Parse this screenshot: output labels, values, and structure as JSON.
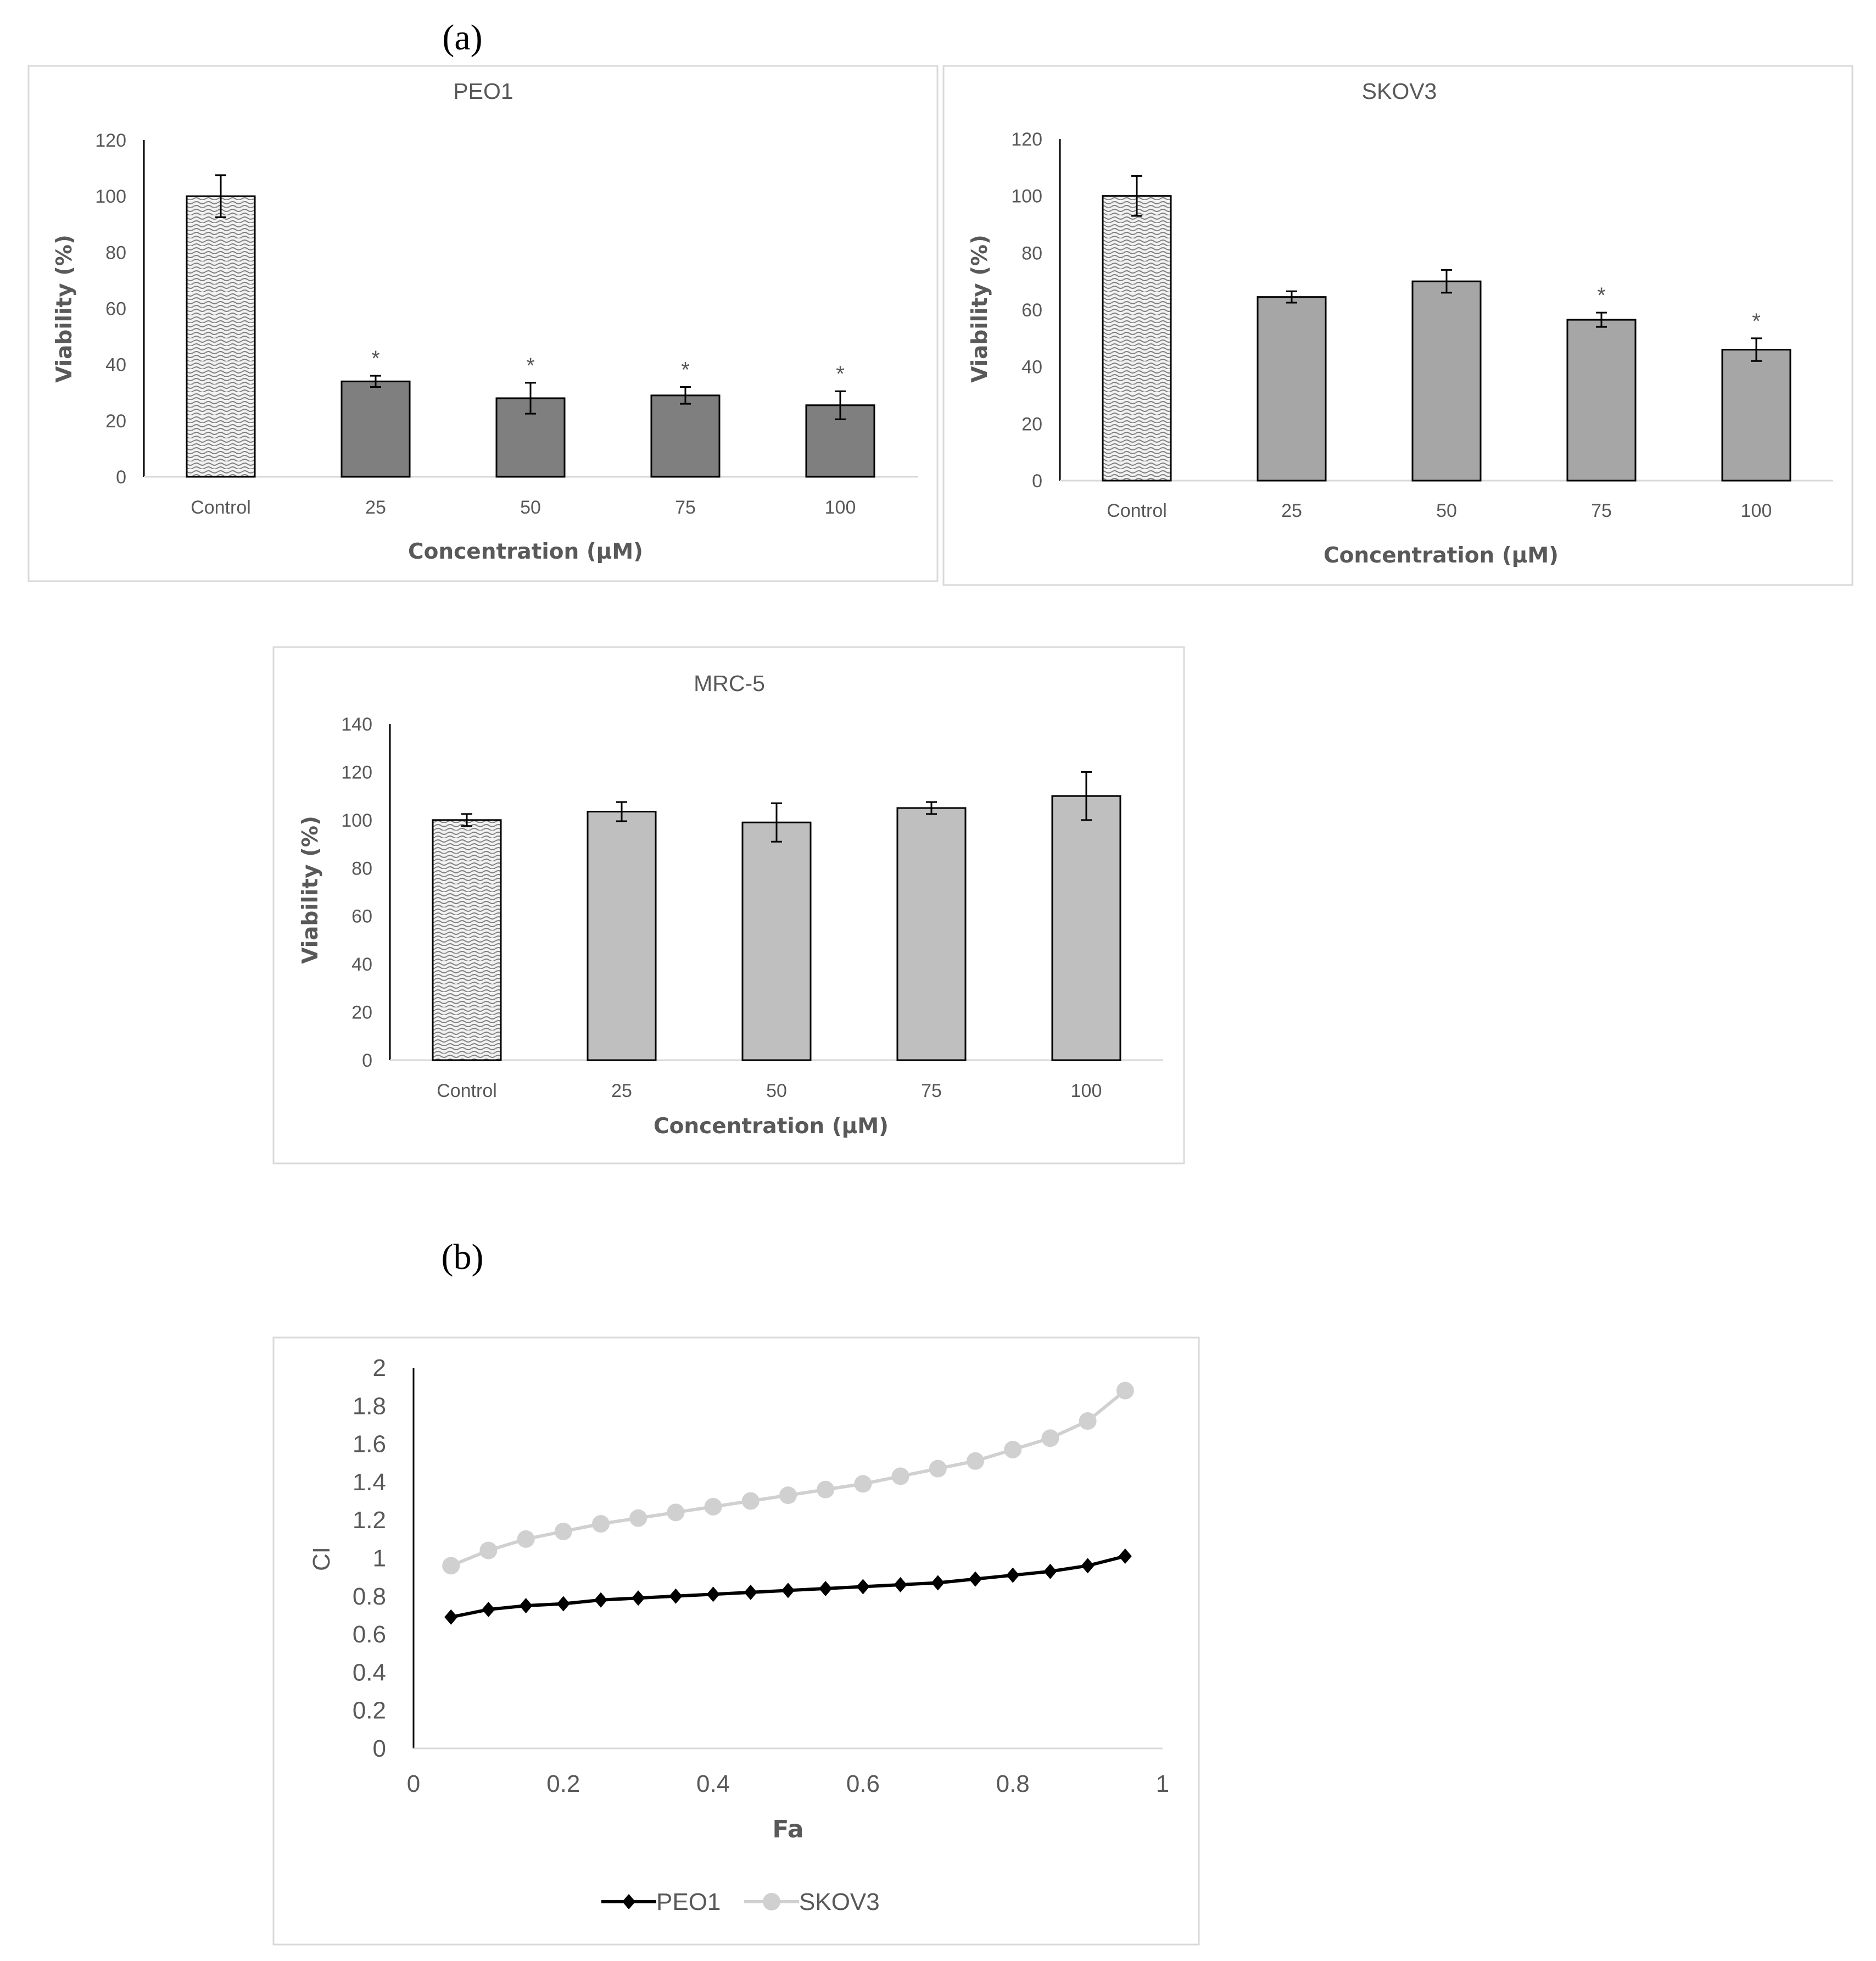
{
  "figure": {
    "panel_a_label": "(a)",
    "panel_b_label": "(b)",
    "panel_a_letter": "a",
    "panel_b_letter": "b"
  },
  "colors": {
    "frame": "#d9d9d9",
    "axis": "#000000",
    "text": "#595959",
    "control_fill": "#f2f2f2",
    "control_hatch": "#7f7f7f",
    "peo1_bar": "#7f7f7f",
    "skov3_bar": "#a6a6a6",
    "mrc5_bar": "#bfbfbf",
    "peo1_line": "#000000",
    "skov3_line": "#d0d0d0"
  },
  "chart_data": [
    {
      "id": "peo1",
      "type": "bar",
      "title": "PEO1",
      "xlabel": "Concentration (µM)",
      "ylabel": "Viability (%)",
      "categories": [
        "Control",
        "25",
        "50",
        "75",
        "100"
      ],
      "values": [
        100,
        34,
        28,
        29,
        25.5
      ],
      "errors": [
        7.5,
        2,
        5.5,
        3,
        5
      ],
      "significance": [
        "",
        "*",
        "*",
        "*",
        "*"
      ],
      "yticks": [
        0,
        20,
        40,
        60,
        80,
        100,
        120
      ],
      "ylim": [
        0,
        120
      ],
      "control_pattern": "dotted"
    },
    {
      "id": "skov3",
      "type": "bar",
      "title": "SKOV3",
      "xlabel": "Concentration (µM)",
      "ylabel": "Viability (%)",
      "categories": [
        "Control",
        "25",
        "50",
        "75",
        "100"
      ],
      "values": [
        100,
        64.5,
        70,
        56.5,
        46
      ],
      "errors": [
        7,
        2,
        4,
        2.5,
        4
      ],
      "significance": [
        "",
        "",
        "",
        "*",
        "*"
      ],
      "yticks": [
        0,
        20,
        40,
        60,
        80,
        100,
        120
      ],
      "ylim": [
        0,
        120
      ],
      "control_pattern": "dotted"
    },
    {
      "id": "mrc5",
      "type": "bar",
      "title": "MRC-5",
      "xlabel": "Concentration (µM)",
      "ylabel": "Viability (%)",
      "categories": [
        "Control",
        "25",
        "50",
        "75",
        "100"
      ],
      "values": [
        100,
        103.5,
        99,
        105,
        110
      ],
      "errors": [
        2.5,
        4,
        8,
        2.5,
        10
      ],
      "significance": [
        "",
        "",
        "",
        "",
        ""
      ],
      "yticks": [
        0,
        20,
        40,
        60,
        80,
        100,
        120,
        140
      ],
      "ylim": [
        0,
        140
      ],
      "control_pattern": "dotted"
    },
    {
      "id": "ci",
      "type": "line",
      "title": "",
      "xlabel": "Fa",
      "ylabel": "CI",
      "xlim": [
        0,
        1
      ],
      "ylim": [
        0,
        2
      ],
      "xticks": [
        "0",
        "0.2",
        "0.4",
        "0.6",
        "0.8",
        "1"
      ],
      "yticks": [
        "0",
        "0.2",
        "0.4",
        "0.6",
        "0.8",
        "1",
        "1.2",
        "1.4",
        "1.6",
        "1.8",
        "2"
      ],
      "x": [
        0.05,
        0.1,
        0.15,
        0.2,
        0.25,
        0.3,
        0.35,
        0.4,
        0.45,
        0.5,
        0.55,
        0.6,
        0.65,
        0.7,
        0.75,
        0.8,
        0.85,
        0.9,
        0.95
      ],
      "series": [
        {
          "name": "PEO1",
          "marker": "diamond",
          "values": [
            0.69,
            0.73,
            0.75,
            0.76,
            0.78,
            0.79,
            0.8,
            0.81,
            0.82,
            0.83,
            0.84,
            0.85,
            0.86,
            0.87,
            0.89,
            0.91,
            0.93,
            0.96,
            1.01
          ]
        },
        {
          "name": "SKOV3",
          "marker": "circle",
          "values": [
            0.96,
            1.04,
            1.1,
            1.14,
            1.18,
            1.21,
            1.24,
            1.27,
            1.3,
            1.33,
            1.36,
            1.39,
            1.43,
            1.47,
            1.51,
            1.57,
            1.63,
            1.72,
            1.88
          ]
        }
      ],
      "legend_position": "bottom"
    }
  ]
}
